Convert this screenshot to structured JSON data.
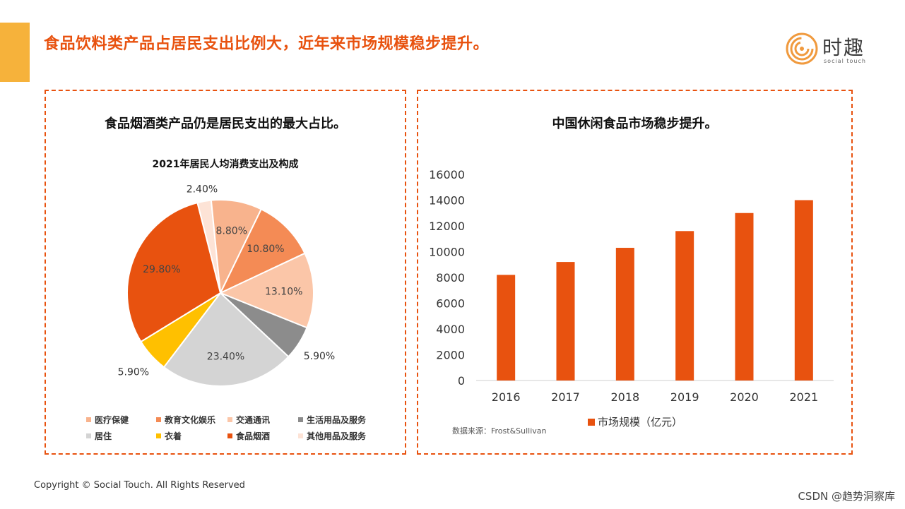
{
  "slide": {
    "title": "食品饮料类产品占居民支出比例大，近年来市场规模稳步提升。",
    "brand_text": "时趣",
    "brand_sub": "social touch",
    "copyright": "Copyright © Social Touch. All Rights Reserved",
    "watermark": "CSDN @趋势洞察库",
    "colors": {
      "accent": "#e8520f",
      "accent_bar": "#f6b23b"
    }
  },
  "left_panel": {
    "heading": "食品烟酒类产品仍是居民支出的最大占比。"
  },
  "right_panel": {
    "heading": "中国休闲食品市场稳步提升。",
    "source": "数据来源：Frost&Sullivan"
  },
  "chart_data": [
    {
      "type": "pie",
      "title": "2021年居民人均消费支出及构成",
      "labels": [
        "其他用品及服务",
        "医疗保健",
        "教育文化娱乐",
        "交通通讯",
        "生活用品及服务",
        "居住",
        "衣着",
        "食品烟酒"
      ],
      "values": [
        2.4,
        8.8,
        10.8,
        13.1,
        5.9,
        23.4,
        5.9,
        29.8
      ],
      "data_labels": [
        "2.40%",
        "8.80%",
        "10.80%",
        "13.10%",
        "5.90%",
        "23.40%",
        "5.90%",
        "29.80%"
      ],
      "colors": [
        "#fde3d6",
        "#f8b38d",
        "#f48b55",
        "#fbc6a8",
        "#8c8c8c",
        "#d4d4d4",
        "#ffc000",
        "#e8520f"
      ],
      "legend": [
        "医疗保健",
        "教育文化娱乐",
        "交通通讯",
        "生活用品及服务",
        "居住",
        "衣着",
        "食品烟酒",
        "其他用品及服务"
      ],
      "legend_colors": [
        "#f8b38d",
        "#f48b55",
        "#fbc6a8",
        "#8c8c8c",
        "#d4d4d4",
        "#ffc000",
        "#e8520f",
        "#fde3d6"
      ]
    },
    {
      "type": "bar",
      "categories": [
        "2016",
        "2017",
        "2018",
        "2019",
        "2020",
        "2021"
      ],
      "series": [
        {
          "name": "市场规模（亿元）",
          "values": [
            8200,
            9200,
            10300,
            11600,
            13000,
            14000
          ],
          "color": "#e8520f"
        }
      ],
      "ylim": [
        0,
        16000
      ],
      "yticks": [
        "0",
        "2000",
        "4000",
        "6000",
        "8000",
        "10000",
        "12000",
        "14000",
        "16000"
      ],
      "grid": false,
      "legend_position": "bottom"
    }
  ]
}
